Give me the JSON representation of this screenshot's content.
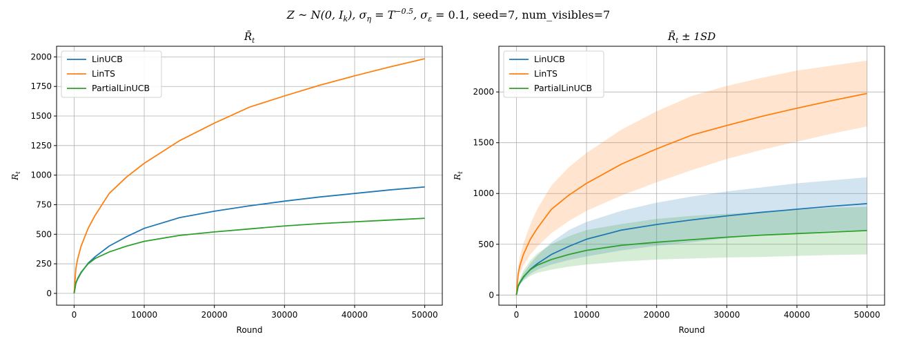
{
  "figure": {
    "suptitle": "Z ~ N(0, I_k), σ_η = T^-0.5, σ_ε = 0.1, seed=7, num_visibles=7"
  },
  "colors": {
    "LinUCB": "#1f77b4",
    "LinTS": "#ff7f0e",
    "PartialLinUCB": "#2ca02c",
    "grid": "#b0b0b0"
  },
  "chart_data": [
    {
      "type": "line",
      "title": "R̄_t",
      "xlabel": "Round",
      "ylabel": "R_t",
      "xlim": [
        -2500,
        52500
      ],
      "ylim": [
        -100,
        2090
      ],
      "xticks": [
        0,
        10000,
        20000,
        30000,
        40000,
        50000
      ],
      "yticks": [
        0,
        250,
        500,
        750,
        1000,
        1250,
        1500,
        1750,
        2000
      ],
      "grid": true,
      "legend": "top-left",
      "x": [
        0,
        250,
        500,
        1000,
        2000,
        3000,
        5000,
        7500,
        10000,
        15000,
        20000,
        25000,
        30000,
        35000,
        40000,
        45000,
        50000
      ],
      "series": [
        {
          "name": "LinUCB",
          "values": [
            0,
            85,
            120,
            175,
            255,
            310,
            400,
            480,
            550,
            640,
            695,
            740,
            780,
            815,
            845,
            875,
            900
          ]
        },
        {
          "name": "LinTS",
          "values": [
            0,
            210,
            290,
            400,
            550,
            660,
            845,
            985,
            1100,
            1290,
            1440,
            1575,
            1670,
            1760,
            1840,
            1915,
            1985
          ]
        },
        {
          "name": "PartialLinUCB",
          "values": [
            0,
            90,
            125,
            180,
            250,
            295,
            350,
            400,
            440,
            490,
            520,
            545,
            570,
            590,
            605,
            620,
            635
          ]
        }
      ]
    },
    {
      "type": "line",
      "title": "R̄_t ± 1SD",
      "xlabel": "Round",
      "ylabel": "R_t",
      "xlim": [
        -2500,
        52500
      ],
      "ylim": [
        -100,
        2450
      ],
      "xticks": [
        0,
        10000,
        20000,
        30000,
        40000,
        50000
      ],
      "yticks": [
        0,
        500,
        1000,
        1500,
        2000
      ],
      "grid": true,
      "legend": "top-left",
      "x": [
        0,
        250,
        500,
        1000,
        2000,
        3000,
        5000,
        7500,
        10000,
        15000,
        20000,
        25000,
        30000,
        35000,
        40000,
        45000,
        50000
      ],
      "series": [
        {
          "name": "LinUCB",
          "values": [
            0,
            85,
            120,
            175,
            255,
            310,
            400,
            480,
            550,
            640,
            695,
            740,
            780,
            815,
            845,
            875,
            900
          ],
          "upper": [
            0,
            95,
            140,
            210,
            310,
            390,
            520,
            640,
            720,
            830,
            910,
            970,
            1020,
            1060,
            1100,
            1130,
            1160
          ],
          "lower": [
            0,
            75,
            105,
            150,
            210,
            250,
            300,
            345,
            380,
            440,
            485,
            520,
            560,
            590,
            610,
            630,
            640
          ]
        },
        {
          "name": "LinTS",
          "values": [
            0,
            210,
            290,
            400,
            550,
            660,
            845,
            985,
            1100,
            1290,
            1440,
            1575,
            1670,
            1760,
            1840,
            1915,
            1985
          ],
          "upper": [
            0,
            280,
            380,
            510,
            700,
            850,
            1080,
            1260,
            1400,
            1630,
            1810,
            1960,
            2060,
            2140,
            2210,
            2260,
            2310
          ],
          "lower": [
            0,
            150,
            210,
            290,
            400,
            480,
            610,
            730,
            830,
            980,
            1110,
            1230,
            1340,
            1430,
            1510,
            1590,
            1660
          ]
        },
        {
          "name": "PartialLinUCB",
          "values": [
            0,
            90,
            125,
            180,
            250,
            295,
            350,
            400,
            440,
            490,
            520,
            545,
            570,
            590,
            605,
            620,
            635
          ],
          "upper": [
            0,
            110,
            160,
            240,
            340,
            410,
            500,
            580,
            640,
            700,
            750,
            780,
            800,
            820,
            840,
            860,
            870
          ],
          "lower": [
            0,
            75,
            100,
            140,
            190,
            220,
            250,
            280,
            300,
            330,
            350,
            360,
            370,
            375,
            385,
            395,
            400
          ]
        }
      ]
    }
  ]
}
